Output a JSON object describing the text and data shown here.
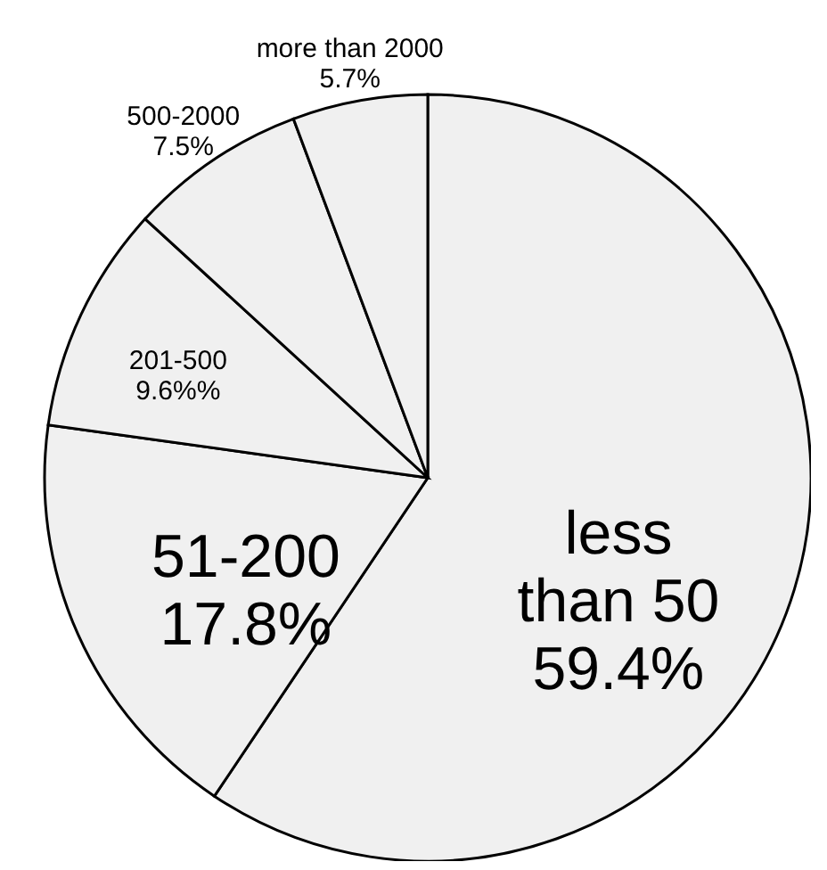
{
  "chart_data": {
    "type": "pie",
    "categories": [
      "less than 50",
      "51-200",
      "201-500",
      "500-2000",
      "more than 2000"
    ],
    "values": [
      59.4,
      17.8,
      9.6,
      7.5,
      5.7
    ],
    "value_labels": [
      "59.4%",
      "17.8%",
      "9.6%%",
      "7.5%",
      "5.7%"
    ],
    "colors": [
      "#f0f0f0",
      "#f0f0f0",
      "#f0f0f0",
      "#f0f0f0",
      "#f0f0f0"
    ]
  }
}
